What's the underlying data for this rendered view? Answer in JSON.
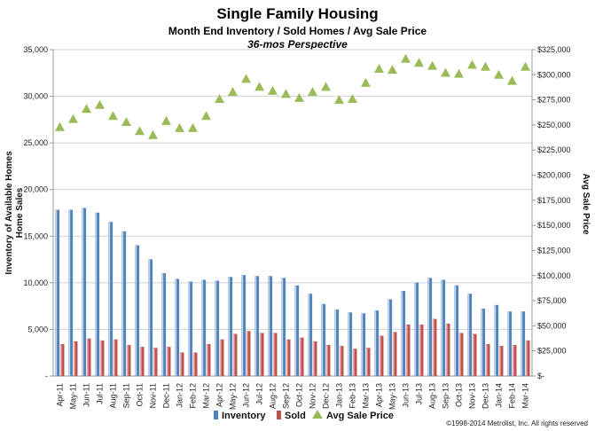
{
  "header": {
    "title": "Single Family Housing",
    "subtitle": "Month End Inventory / Sold Homes / Avg Sale Price",
    "subsubtitle": "36-mos Perspective"
  },
  "footer": {
    "copyright": "©1998-2014 Metrolist, Inc.  All rights reserved"
  },
  "colors": {
    "inventory": "#4f81bd",
    "sold": "#c0504d",
    "price": "#9bbb59",
    "grid": "#d0d0d0",
    "axis": "#999999"
  },
  "chart_data": {
    "type": "bar",
    "title": "Single Family Housing",
    "categories": [
      "Apr-11",
      "May-11",
      "Jun-11",
      "Jul-11",
      "Aug-11",
      "Sep-11",
      "Oct-11",
      "Nov-11",
      "Dec-11",
      "Jan-12",
      "Feb-12",
      "Mar-12",
      "Apr-12",
      "May-12",
      "Jun-12",
      "Jul-12",
      "Aug-12",
      "Sep-12",
      "Oct-12",
      "Nov-12",
      "Dec-12",
      "Jan-13",
      "Feb-13",
      "Mar-13",
      "Apr-13",
      "May-13",
      "Jun-13",
      "Jul-13",
      "Aug-13",
      "Sep-13",
      "Oct-13",
      "Nov-13",
      "Dec-13",
      "Jan-14",
      "Feb-14",
      "Mar-14"
    ],
    "ylabel": "Inventory of Available Homes\nHome Sales",
    "y2label": "Avg Sale Price",
    "ylim": [
      0,
      35000
    ],
    "y2lim": [
      0,
      325000
    ],
    "yticks": [
      "-",
      "5,000",
      "10,000",
      "15,000",
      "20,000",
      "25,000",
      "30,000",
      "35,000"
    ],
    "y2ticks": [
      "$-",
      "$25,000",
      "$50,000",
      "$75,000",
      "$100,000",
      "$125,000",
      "$150,000",
      "$175,000",
      "$200,000",
      "$225,000",
      "$250,000",
      "$275,000",
      "$300,000",
      "$325,000"
    ],
    "grid": true,
    "legend": "bottom",
    "series": [
      {
        "name": "Inventory",
        "kind": "bar",
        "axis": "left",
        "values": [
          17800,
          17800,
          18000,
          17500,
          16500,
          15500,
          14000,
          12500,
          11000,
          10400,
          10100,
          10300,
          10200,
          10600,
          10800,
          10700,
          10700,
          10500,
          9700,
          8800,
          7700,
          7100,
          6800,
          6700,
          7000,
          8200,
          9100,
          10000,
          10500,
          10300,
          9700,
          8800,
          7200,
          7600,
          6900,
          6900
        ]
      },
      {
        "name": "Sold",
        "kind": "bar",
        "axis": "left",
        "values": [
          3400,
          3700,
          4000,
          3800,
          3900,
          3300,
          3100,
          3000,
          3100,
          2500,
          2500,
          3400,
          3900,
          4500,
          4800,
          4600,
          4600,
          3900,
          4100,
          3700,
          3300,
          3200,
          2900,
          3000,
          4300,
          4700,
          5500,
          5500,
          6100,
          5600,
          4600,
          4500,
          3400,
          3200,
          3300,
          3800
        ]
      },
      {
        "name": "Avg Sale Price",
        "kind": "marker",
        "axis": "right",
        "values": [
          248000,
          256000,
          266000,
          270000,
          259000,
          253000,
          244000,
          240000,
          254000,
          247000,
          247000,
          259000,
          276000,
          283000,
          296000,
          288000,
          284000,
          281000,
          277000,
          283000,
          288000,
          275000,
          276000,
          292000,
          306000,
          305000,
          316000,
          312000,
          309000,
          302000,
          301000,
          310000,
          308000,
          300000,
          294000,
          308000
        ]
      }
    ]
  }
}
